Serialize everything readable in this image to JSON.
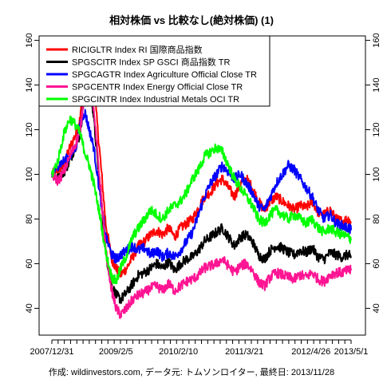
{
  "chart_data": {
    "type": "line",
    "title": "相対株価 vs 比較なし(絶対株価) (1)",
    "caption": "作成: wildinvestors.com, データ元: トムソンロイター, 最終日: 2013/11/28",
    "xlabel": "",
    "ylabel": "",
    "x_tick_labels": [
      "2007/12/31",
      "2009/2/5",
      "2010/2/10",
      "2011/3/21",
      "2012/4/26",
      "2013/5/1"
    ],
    "x_tick_positions": [
      0,
      0.214,
      0.423,
      0.643,
      0.866,
      1.0
    ],
    "ylim": [
      28,
      162
    ],
    "y_ticks": [
      40,
      60,
      80,
      100,
      120,
      140,
      160
    ],
    "grid": false,
    "legend_position": "top-left",
    "series": [
      {
        "name": "RICIGLTR Index RI 国際商品指数",
        "color": "#ff0000",
        "points": [
          [
            0,
            100
          ],
          [
            0.02,
            102
          ],
          [
            0.04,
            104
          ],
          [
            0.06,
            112
          ],
          [
            0.08,
            118
          ],
          [
            0.095,
            125
          ],
          [
            0.11,
            150
          ],
          [
            0.125,
            160
          ],
          [
            0.14,
            140
          ],
          [
            0.16,
            110
          ],
          [
            0.18,
            78
          ],
          [
            0.2,
            62
          ],
          [
            0.215,
            58
          ],
          [
            0.23,
            55
          ],
          [
            0.25,
            58
          ],
          [
            0.27,
            63
          ],
          [
            0.29,
            68
          ],
          [
            0.31,
            70
          ],
          [
            0.33,
            73
          ],
          [
            0.35,
            75
          ],
          [
            0.37,
            73
          ],
          [
            0.39,
            76
          ],
          [
            0.41,
            72
          ],
          [
            0.43,
            76
          ],
          [
            0.45,
            78
          ],
          [
            0.47,
            80
          ],
          [
            0.49,
            85
          ],
          [
            0.51,
            90
          ],
          [
            0.53,
            92
          ],
          [
            0.55,
            96
          ],
          [
            0.57,
            98
          ],
          [
            0.59,
            94
          ],
          [
            0.61,
            90
          ],
          [
            0.63,
            96
          ],
          [
            0.65,
            98
          ],
          [
            0.67,
            94
          ],
          [
            0.69,
            88
          ],
          [
            0.71,
            84
          ],
          [
            0.73,
            88
          ],
          [
            0.75,
            90
          ],
          [
            0.77,
            88
          ],
          [
            0.79,
            86
          ],
          [
            0.81,
            84
          ],
          [
            0.83,
            86
          ],
          [
            0.85,
            85
          ],
          [
            0.87,
            88
          ],
          [
            0.89,
            83
          ],
          [
            0.91,
            82
          ],
          [
            0.93,
            84
          ],
          [
            0.95,
            80
          ],
          [
            0.97,
            79
          ],
          [
            0.99,
            80
          ],
          [
            1.0,
            78
          ]
        ]
      },
      {
        "name": "SPGSCITR Index SP GSCI 商品指数 TR",
        "color": "#000000",
        "points": [
          [
            0,
            100
          ],
          [
            0.02,
            98
          ],
          [
            0.04,
            101
          ],
          [
            0.06,
            106
          ],
          [
            0.08,
            113
          ],
          [
            0.095,
            118
          ],
          [
            0.11,
            138
          ],
          [
            0.125,
            146
          ],
          [
            0.14,
            125
          ],
          [
            0.16,
            95
          ],
          [
            0.18,
            65
          ],
          [
            0.2,
            50
          ],
          [
            0.215,
            46
          ],
          [
            0.23,
            44
          ],
          [
            0.25,
            47
          ],
          [
            0.27,
            51
          ],
          [
            0.29,
            55
          ],
          [
            0.31,
            56
          ],
          [
            0.33,
            58
          ],
          [
            0.35,
            60
          ],
          [
            0.37,
            58
          ],
          [
            0.39,
            61
          ],
          [
            0.41,
            57
          ],
          [
            0.43,
            60
          ],
          [
            0.45,
            62
          ],
          [
            0.47,
            63
          ],
          [
            0.49,
            66
          ],
          [
            0.51,
            70
          ],
          [
            0.53,
            72
          ],
          [
            0.55,
            74
          ],
          [
            0.57,
            76
          ],
          [
            0.59,
            72
          ],
          [
            0.61,
            68
          ],
          [
            0.63,
            72
          ],
          [
            0.65,
            73
          ],
          [
            0.67,
            70
          ],
          [
            0.69,
            64
          ],
          [
            0.71,
            62
          ],
          [
            0.73,
            66
          ],
          [
            0.75,
            68
          ],
          [
            0.77,
            67
          ],
          [
            0.79,
            65
          ],
          [
            0.81,
            64
          ],
          [
            0.83,
            66
          ],
          [
            0.85,
            65
          ],
          [
            0.87,
            67
          ],
          [
            0.89,
            63
          ],
          [
            0.91,
            62
          ],
          [
            0.93,
            65
          ],
          [
            0.95,
            64
          ],
          [
            0.97,
            63
          ],
          [
            0.99,
            64
          ],
          [
            1.0,
            63
          ]
        ]
      },
      {
        "name": "SPGCAGTR Index Agriculture Official Close TR",
        "color": "#0000ff",
        "points": [
          [
            0,
            100
          ],
          [
            0.02,
            104
          ],
          [
            0.04,
            106
          ],
          [
            0.06,
            108
          ],
          [
            0.08,
            112
          ],
          [
            0.095,
            122
          ],
          [
            0.11,
            128
          ],
          [
            0.125,
            120
          ],
          [
            0.14,
            112
          ],
          [
            0.16,
            92
          ],
          [
            0.18,
            72
          ],
          [
            0.2,
            64
          ],
          [
            0.215,
            62
          ],
          [
            0.23,
            64
          ],
          [
            0.25,
            66
          ],
          [
            0.27,
            68
          ],
          [
            0.29,
            66
          ],
          [
            0.31,
            67
          ],
          [
            0.33,
            64
          ],
          [
            0.35,
            66
          ],
          [
            0.37,
            63
          ],
          [
            0.39,
            65
          ],
          [
            0.41,
            63
          ],
          [
            0.43,
            66
          ],
          [
            0.45,
            70
          ],
          [
            0.47,
            74
          ],
          [
            0.49,
            82
          ],
          [
            0.51,
            90
          ],
          [
            0.53,
            96
          ],
          [
            0.55,
            100
          ],
          [
            0.57,
            104
          ],
          [
            0.59,
            101
          ],
          [
            0.61,
            98
          ],
          [
            0.63,
            100
          ],
          [
            0.65,
            96
          ],
          [
            0.67,
            92
          ],
          [
            0.69,
            86
          ],
          [
            0.71,
            84
          ],
          [
            0.73,
            90
          ],
          [
            0.75,
            96
          ],
          [
            0.77,
            100
          ],
          [
            0.79,
            104
          ],
          [
            0.81,
            102
          ],
          [
            0.83,
            98
          ],
          [
            0.85,
            94
          ],
          [
            0.87,
            90
          ],
          [
            0.89,
            84
          ],
          [
            0.91,
            80
          ],
          [
            0.93,
            82
          ],
          [
            0.95,
            78
          ],
          [
            0.97,
            77
          ],
          [
            0.99,
            76
          ],
          [
            1.0,
            75
          ]
        ]
      },
      {
        "name": "SPGCENTR Index Energy Official Close TR",
        "color": "#ff1493",
        "points": [
          [
            0,
            100
          ],
          [
            0.02,
            97
          ],
          [
            0.04,
            101
          ],
          [
            0.06,
            108
          ],
          [
            0.08,
            114
          ],
          [
            0.095,
            120
          ],
          [
            0.11,
            138
          ],
          [
            0.125,
            148
          ],
          [
            0.14,
            128
          ],
          [
            0.16,
            98
          ],
          [
            0.18,
            66
          ],
          [
            0.2,
            48
          ],
          [
            0.215,
            40
          ],
          [
            0.23,
            37
          ],
          [
            0.25,
            40
          ],
          [
            0.27,
            44
          ],
          [
            0.29,
            46
          ],
          [
            0.31,
            47
          ],
          [
            0.33,
            49
          ],
          [
            0.35,
            50
          ],
          [
            0.37,
            48
          ],
          [
            0.39,
            51
          ],
          [
            0.41,
            48
          ],
          [
            0.43,
            50
          ],
          [
            0.45,
            52
          ],
          [
            0.47,
            53
          ],
          [
            0.49,
            55
          ],
          [
            0.51,
            58
          ],
          [
            0.53,
            59
          ],
          [
            0.55,
            60
          ],
          [
            0.57,
            62
          ],
          [
            0.59,
            59
          ],
          [
            0.61,
            56
          ],
          [
            0.63,
            59
          ],
          [
            0.65,
            60
          ],
          [
            0.67,
            57
          ],
          [
            0.69,
            52
          ],
          [
            0.71,
            50
          ],
          [
            0.73,
            54
          ],
          [
            0.75,
            56
          ],
          [
            0.77,
            55
          ],
          [
            0.79,
            54
          ],
          [
            0.81,
            53
          ],
          [
            0.83,
            55
          ],
          [
            0.85,
            54
          ],
          [
            0.87,
            56
          ],
          [
            0.89,
            53
          ],
          [
            0.91,
            52
          ],
          [
            0.93,
            55
          ],
          [
            0.95,
            56
          ],
          [
            0.97,
            56
          ],
          [
            0.99,
            57
          ],
          [
            1.0,
            57
          ]
        ]
      },
      {
        "name": "SPGCINTR Index Industrial Metals OCI TR",
        "color": "#00ff00",
        "points": [
          [
            0,
            100
          ],
          [
            0.02,
            106
          ],
          [
            0.04,
            118
          ],
          [
            0.06,
            125
          ],
          [
            0.08,
            122
          ],
          [
            0.095,
            118
          ],
          [
            0.11,
            110
          ],
          [
            0.125,
            104
          ],
          [
            0.14,
            96
          ],
          [
            0.16,
            82
          ],
          [
            0.18,
            65
          ],
          [
            0.2,
            54
          ],
          [
            0.215,
            52
          ],
          [
            0.23,
            58
          ],
          [
            0.25,
            64
          ],
          [
            0.27,
            72
          ],
          [
            0.29,
            76
          ],
          [
            0.31,
            80
          ],
          [
            0.33,
            84
          ],
          [
            0.35,
            82
          ],
          [
            0.37,
            80
          ],
          [
            0.39,
            84
          ],
          [
            0.41,
            86
          ],
          [
            0.43,
            88
          ],
          [
            0.45,
            92
          ],
          [
            0.47,
            98
          ],
          [
            0.49,
            102
          ],
          [
            0.51,
            108
          ],
          [
            0.53,
            110
          ],
          [
            0.55,
            112
          ],
          [
            0.57,
            110
          ],
          [
            0.59,
            104
          ],
          [
            0.61,
            98
          ],
          [
            0.63,
            94
          ],
          [
            0.65,
            90
          ],
          [
            0.67,
            86
          ],
          [
            0.69,
            80
          ],
          [
            0.71,
            78
          ],
          [
            0.73,
            82
          ],
          [
            0.75,
            84
          ],
          [
            0.77,
            82
          ],
          [
            0.79,
            80
          ],
          [
            0.81,
            82
          ],
          [
            0.83,
            80
          ],
          [
            0.85,
            78
          ],
          [
            0.87,
            80
          ],
          [
            0.89,
            76
          ],
          [
            0.91,
            74
          ],
          [
            0.93,
            76
          ],
          [
            0.95,
            74
          ],
          [
            0.97,
            73
          ],
          [
            0.99,
            72
          ],
          [
            1.0,
            71
          ]
        ]
      }
    ]
  }
}
